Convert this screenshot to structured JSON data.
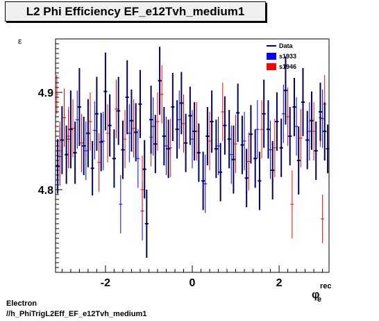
{
  "chart_data": {
    "type": "scatter",
    "title": "L2 Phi Efficiency EF_e12Tvh_medium1",
    "ylabel": "ε",
    "xlabel_main": "φ",
    "xlabel_sup": "rec",
    "xlabel_sub": "e",
    "xlim": [
      -3.15,
      3.15
    ],
    "ylim": [
      4.715,
      4.955
    ],
    "xticks": [
      -2,
      0,
      2
    ],
    "xtick_labels": [
      "-2",
      "0",
      "2"
    ],
    "yticks": [
      4.8,
      4.9
    ],
    "ytick_labels": [
      "4.8",
      "4.9"
    ],
    "legend": {
      "position": "top-right",
      "entries": [
        {
          "label": "Data",
          "color": "#00006e",
          "style": "line"
        },
        {
          "label": "s1933",
          "color": "#0000ff",
          "style": "box"
        },
        {
          "label": "s1946",
          "color": "#ff0000",
          "style": "box"
        }
      ]
    },
    "series": [
      {
        "name": "Data",
        "color": "#000066",
        "width": 2,
        "points": [
          [
            -3.1,
            4.824,
            0.028
          ],
          [
            -3.0,
            4.851,
            0.035
          ],
          [
            -2.9,
            4.836,
            0.03
          ],
          [
            -2.8,
            4.862,
            0.04
          ],
          [
            -2.7,
            4.838,
            0.032
          ],
          [
            -2.6,
            4.885,
            0.04
          ],
          [
            -2.5,
            4.845,
            0.03
          ],
          [
            -2.4,
            4.858,
            0.035
          ],
          [
            -2.3,
            4.822,
            0.028
          ],
          [
            -2.2,
            4.878,
            0.038
          ],
          [
            -2.1,
            4.849,
            0.03
          ],
          [
            -2.0,
            4.901,
            0.04
          ],
          [
            -1.9,
            4.866,
            0.032
          ],
          [
            -1.8,
            4.832,
            0.03
          ],
          [
            -1.7,
            4.881,
            0.035
          ],
          [
            -1.6,
            4.841,
            0.03
          ],
          [
            -1.5,
            4.895,
            0.038
          ],
          [
            -1.4,
            4.871,
            0.032
          ],
          [
            -1.3,
            4.859,
            0.03
          ],
          [
            -1.2,
            4.888,
            0.035
          ],
          [
            -1.1,
            4.821,
            0.03
          ],
          [
            -1.05,
            4.765,
            0.035
          ],
          [
            -0.95,
            4.872,
            0.035
          ],
          [
            -0.85,
            4.847,
            0.03
          ],
          [
            -0.75,
            4.912,
            0.035
          ],
          [
            -0.65,
            4.855,
            0.03
          ],
          [
            -0.55,
            4.842,
            0.03
          ],
          [
            -0.45,
            4.885,
            0.035
          ],
          [
            -0.35,
            4.862,
            0.03
          ],
          [
            -0.25,
            4.889,
            0.032
          ],
          [
            -0.15,
            4.848,
            0.03
          ],
          [
            -0.05,
            4.876,
            0.03
          ],
          [
            0.05,
            4.86,
            0.03
          ],
          [
            0.15,
            4.838,
            0.03
          ],
          [
            0.25,
            4.809,
            0.03
          ],
          [
            0.35,
            4.855,
            0.03
          ],
          [
            0.45,
            4.87,
            0.032
          ],
          [
            0.55,
            4.842,
            0.03
          ],
          [
            0.65,
            4.818,
            0.03
          ],
          [
            0.75,
            4.866,
            0.03
          ],
          [
            0.85,
            4.852,
            0.03
          ],
          [
            0.95,
            4.831,
            0.035
          ],
          [
            1.05,
            4.879,
            0.03
          ],
          [
            1.15,
            4.846,
            0.03
          ],
          [
            1.25,
            4.812,
            0.03
          ],
          [
            1.35,
            4.857,
            0.03
          ],
          [
            1.45,
            4.832,
            0.03
          ],
          [
            1.55,
            4.809,
            0.03
          ],
          [
            1.65,
            4.878,
            0.035
          ],
          [
            1.75,
            4.862,
            0.03
          ],
          [
            1.85,
            4.82,
            0.03
          ],
          [
            1.95,
            4.87,
            0.03
          ],
          [
            2.05,
            4.843,
            0.03
          ],
          [
            2.15,
            4.902,
            0.035
          ],
          [
            2.25,
            4.855,
            0.03
          ],
          [
            2.35,
            4.885,
            0.03
          ],
          [
            2.45,
            4.83,
            0.035
          ],
          [
            2.55,
            4.89,
            0.035
          ],
          [
            2.65,
            4.851,
            0.03
          ],
          [
            2.75,
            4.871,
            0.03
          ],
          [
            2.85,
            4.84,
            0.03
          ],
          [
            2.95,
            4.88,
            0.03
          ],
          [
            3.05,
            4.86,
            0.03
          ],
          [
            3.12,
            4.842,
            0.025
          ]
        ]
      },
      {
        "name": "s1933",
        "color": "#0000ff",
        "width": 1,
        "points": [
          [
            -3.05,
            4.834,
            0.03
          ],
          [
            -2.85,
            4.852,
            0.03
          ],
          [
            -2.65,
            4.872,
            0.03
          ],
          [
            -2.45,
            4.84,
            0.03
          ],
          [
            -2.25,
            4.861,
            0.03
          ],
          [
            -2.05,
            4.85,
            0.03
          ],
          [
            -1.65,
            4.785,
            0.03
          ],
          [
            -1.45,
            4.858,
            0.03
          ],
          [
            -1.25,
            4.832,
            0.03
          ],
          [
            -1.15,
            4.778,
            0.03
          ],
          [
            -0.9,
            4.865,
            0.03
          ],
          [
            -0.6,
            4.845,
            0.03
          ],
          [
            -0.3,
            4.872,
            0.03
          ],
          [
            0.0,
            4.852,
            0.03
          ],
          [
            0.3,
            4.806,
            0.03
          ],
          [
            0.6,
            4.845,
            0.03
          ],
          [
            0.9,
            4.836,
            0.03
          ],
          [
            1.2,
            4.85,
            0.03
          ],
          [
            1.5,
            4.862,
            0.03
          ],
          [
            1.8,
            4.841,
            0.03
          ],
          [
            2.1,
            4.878,
            0.03
          ],
          [
            2.4,
            4.865,
            0.03
          ],
          [
            2.7,
            4.86,
            0.03
          ],
          [
            3.0,
            4.873,
            0.03
          ]
        ]
      },
      {
        "name": "s1946",
        "color": "#ff0000",
        "width": 1,
        "points": [
          [
            -3.12,
            4.898,
            0.02
          ],
          [
            -3.05,
            4.84,
            0.03
          ],
          [
            -2.95,
            4.874,
            0.03
          ],
          [
            -2.85,
            4.855,
            0.03
          ],
          [
            -2.75,
            4.863,
            0.03
          ],
          [
            -2.55,
            4.848,
            0.03
          ],
          [
            -2.35,
            4.87,
            0.03
          ],
          [
            -2.15,
            4.828,
            0.03
          ],
          [
            -1.95,
            4.858,
            0.03
          ],
          [
            -1.75,
            4.883,
            0.03
          ],
          [
            -1.55,
            4.852,
            0.03
          ],
          [
            -1.35,
            4.863,
            0.03
          ],
          [
            -1.15,
            4.8,
            0.035
          ],
          [
            -0.95,
            4.854,
            0.03
          ],
          [
            -0.8,
            4.87,
            0.03
          ],
          [
            -0.7,
            4.898,
            0.03
          ],
          [
            -0.5,
            4.843,
            0.03
          ],
          [
            -0.2,
            4.868,
            0.03
          ],
          [
            0.1,
            4.86,
            0.03
          ],
          [
            0.4,
            4.85,
            0.03
          ],
          [
            0.7,
            4.88,
            0.03
          ],
          [
            1.0,
            4.847,
            0.03
          ],
          [
            1.3,
            4.829,
            0.03
          ],
          [
            1.6,
            4.862,
            0.03
          ],
          [
            1.9,
            4.843,
            0.03
          ],
          [
            2.2,
            4.875,
            0.03
          ],
          [
            2.5,
            4.853,
            0.03
          ],
          [
            2.8,
            4.86,
            0.03
          ],
          [
            2.95,
            4.874,
            0.03
          ],
          [
            3.05,
            4.888,
            0.03
          ],
          [
            2.3,
            4.785,
            0.035
          ],
          [
            3.0,
            4.77,
            0.025
          ]
        ]
      }
    ]
  },
  "footer": {
    "line1": "Electron",
    "line2": "//h_PhiTrigL2Eff_EF_e12Tvh_medium1"
  }
}
